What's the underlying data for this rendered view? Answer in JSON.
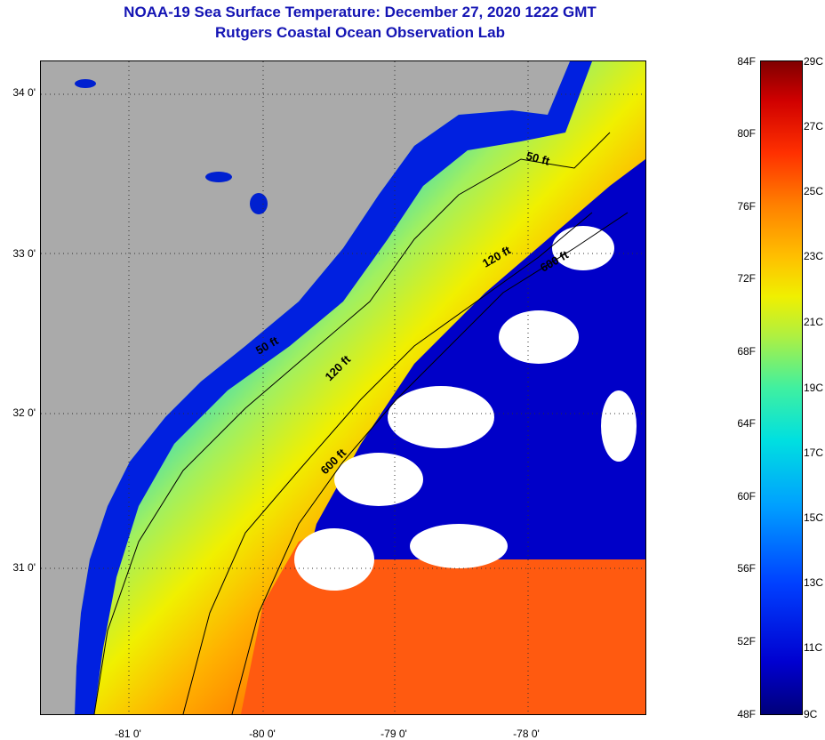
{
  "title": {
    "line1": "NOAA-19 Sea Surface Temperature:  December 27, 2020 1222 GMT",
    "line2": "Rutgers Coastal Ocean Observation Lab"
  },
  "axes": {
    "lat_labels": [
      "34 0'",
      "33 0'",
      "32 0'",
      "31 0'"
    ],
    "lon_labels": [
      "-81 0'",
      "-80 0'",
      "-79 0'",
      "-78 0'"
    ]
  },
  "depth_contours": [
    "50 ft",
    "120 ft",
    "600 ft",
    "50 ft",
    "120 ft",
    "600 ft"
  ],
  "colorbar": {
    "fahrenheit": [
      "84F",
      "80F",
      "76F",
      "72F",
      "68F",
      "64F",
      "60F",
      "56F",
      "52F",
      "48F"
    ],
    "celsius": [
      "29C",
      "27C",
      "25C",
      "23C",
      "21C",
      "19C",
      "17C",
      "15C",
      "13C",
      "11C",
      "9C"
    ],
    "colors": [
      "#00007a",
      "#0000d0",
      "#0040ff",
      "#00a0ff",
      "#00e0e0",
      "#40f0a0",
      "#b0f040",
      "#f0f000",
      "#ffc000",
      "#ff8000",
      "#ff3000",
      "#d00000",
      "#800000"
    ]
  },
  "map_colors": {
    "land": "#aaaaaa",
    "cloud": "#ffffff",
    "cold": "#0000c8",
    "warm": "#ff5a10"
  }
}
